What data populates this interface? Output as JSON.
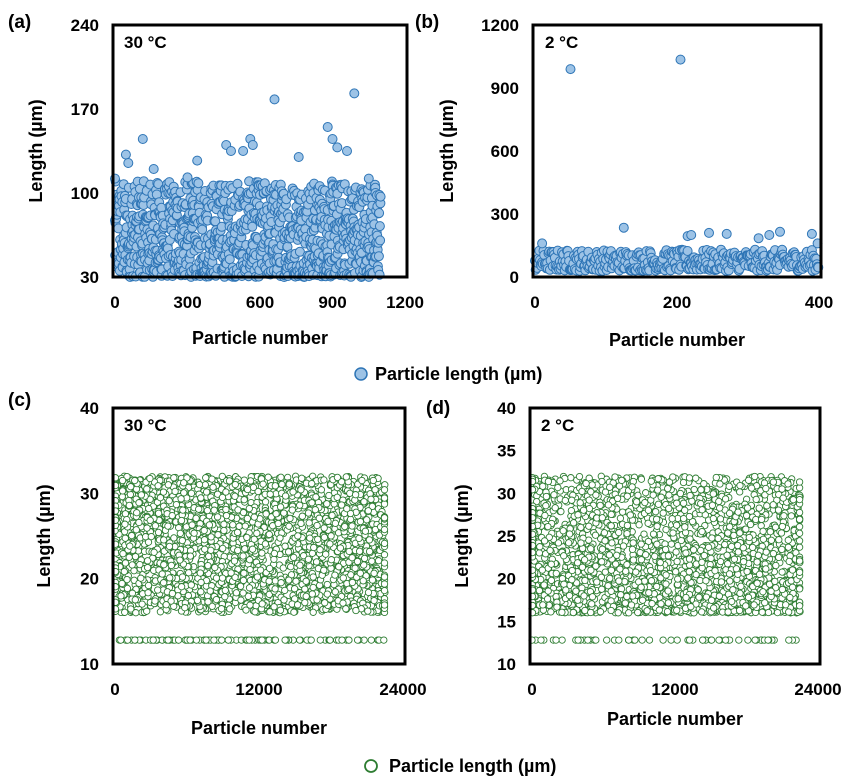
{
  "legend_blue": {
    "label": "Particle length (µm)",
    "fill": "#9dc3e6",
    "stroke": "#2e75b6"
  },
  "legend_green": {
    "label": "Particle length (µm)",
    "fill": "#ffffff",
    "stroke": "#2e7d32"
  },
  "chart_data": [
    {
      "panel_label": "(a)",
      "annotation": "30 °C",
      "type": "scatter",
      "xlabel": "Particle number",
      "ylabel": "Length (µm)",
      "xlim": [
        0,
        1200
      ],
      "ylim": [
        30,
        240
      ],
      "xticks": [
        "0",
        "300",
        "600",
        "900",
        "1200"
      ],
      "yticks": [
        "30",
        "100",
        "170",
        "240"
      ],
      "marker_fill": "#9dc3e6",
      "marker_stroke": "#2e75b6",
      "series": [
        {
          "n_points": 1100,
          "bulk_range": [
            30,
            110
          ],
          "outliers": [
            [
              0,
              112
            ],
            [
              45,
              132
            ],
            [
              55,
              125
            ],
            [
              115,
              145
            ],
            [
              160,
              120
            ],
            [
              300,
              113
            ],
            [
              340,
              127
            ],
            [
              460,
              140
            ],
            [
              480,
              135
            ],
            [
              530,
              135
            ],
            [
              560,
              145
            ],
            [
              570,
              140
            ],
            [
              660,
              178
            ],
            [
              760,
              130
            ],
            [
              880,
              155
            ],
            [
              900,
              145
            ],
            [
              920,
              138
            ],
            [
              960,
              135
            ],
            [
              990,
              183
            ],
            [
              1050,
              112
            ]
          ]
        }
      ]
    },
    {
      "panel_label": "(b)",
      "annotation": "2 °C",
      "type": "scatter",
      "xlabel": "Particle number",
      "ylabel": "Length (µm)",
      "xlim": [
        0,
        400
      ],
      "ylim": [
        0,
        1200
      ],
      "xticks": [
        "0",
        "200",
        "400"
      ],
      "yticks": [
        "0",
        "300",
        "600",
        "900",
        "1200"
      ],
      "marker_fill": "#9dc3e6",
      "marker_stroke": "#2e75b6",
      "series": [
        {
          "n_points": 400,
          "bulk_range": [
            30,
            130
          ],
          "outliers": [
            [
              50,
              990
            ],
            [
              205,
              1035
            ],
            [
              125,
              235
            ],
            [
              10,
              160
            ],
            [
              215,
              195
            ],
            [
              220,
              200
            ],
            [
              245,
              210
            ],
            [
              270,
              205
            ],
            [
              315,
              185
            ],
            [
              330,
              200
            ],
            [
              345,
              215
            ],
            [
              390,
              205
            ],
            [
              398,
              160
            ]
          ]
        }
      ]
    },
    {
      "panel_label": "(c)",
      "annotation": "30 °C",
      "type": "scatter",
      "xlabel": "Particle number",
      "ylabel": "Length (µm)",
      "xlim": [
        0,
        24000
      ],
      "ylim": [
        10,
        40
      ],
      "xticks": [
        "0",
        "12000",
        "24000"
      ],
      "yticks": [
        "10",
        "20",
        "30",
        "40"
      ],
      "marker_fill": "#ffffff",
      "marker_stroke": "#2e7d32",
      "series": [
        {
          "n_points": 22500,
          "bulk_range": [
            16,
            32
          ],
          "low_value": 12.8
        }
      ]
    },
    {
      "panel_label": "(d)",
      "annotation": "2 °C",
      "type": "scatter",
      "xlabel": "Particle number",
      "ylabel": "Length (µm)",
      "xlim": [
        0,
        24000
      ],
      "ylim": [
        10,
        40
      ],
      "xticks": [
        "0",
        "12000",
        "24000"
      ],
      "yticks": [
        "10",
        "15",
        "20",
        "25",
        "30",
        "35",
        "40"
      ],
      "marker_fill": "#ffffff",
      "marker_stroke": "#2e7d32",
      "series": [
        {
          "n_points": 22500,
          "bulk_range": [
            16,
            32
          ],
          "low_value": 12.8
        }
      ]
    }
  ]
}
